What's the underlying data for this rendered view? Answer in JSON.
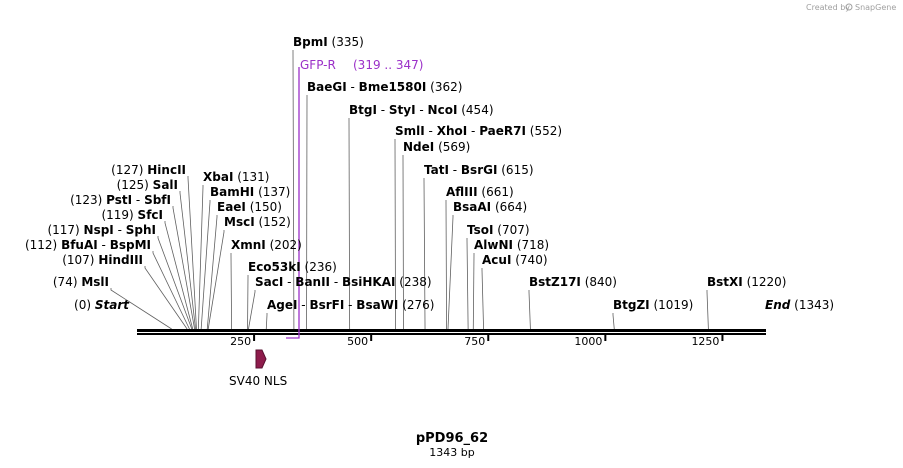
{
  "credit": {
    "text": "Created by",
    "brand": "SnapGene"
  },
  "plasmid": {
    "name": "pPD96_62",
    "length_label": "1343 bp"
  },
  "scale_ticks": [
    "250",
    "500",
    "750",
    "1000",
    "1250"
  ],
  "features": [
    {
      "name": "GFP-R",
      "range": "(319 .. 347)",
      "color": "#9b30c8"
    },
    {
      "name": "SV40 NLS",
      "color": "#8e1c4c"
    }
  ],
  "sites_left": [
    {
      "names": [
        "HincII"
      ],
      "pos": "(127)"
    },
    {
      "names": [
        "SalI"
      ],
      "pos": "(125)"
    },
    {
      "names": [
        "PstI",
        "SbfI"
      ],
      "pos": "(123)"
    },
    {
      "names": [
        "SfcI"
      ],
      "pos": "(119)"
    },
    {
      "names": [
        "NspI",
        "SphI"
      ],
      "pos": "(117)"
    },
    {
      "names": [
        "BfuAI",
        "BspMI"
      ],
      "pos": "(112)"
    },
    {
      "names": [
        "HindIII"
      ],
      "pos": "(107)"
    },
    {
      "names": [
        "MslI"
      ],
      "pos": "(74)"
    },
    {
      "names": [
        "Start"
      ],
      "pos": "(0)"
    }
  ],
  "sites_right": [
    {
      "names": [
        "BpmI"
      ],
      "pos": "(335)"
    },
    {
      "names": [
        "BaeGI",
        "Bme1580I"
      ],
      "pos": "(362)"
    },
    {
      "names": [
        "BtgI",
        "StyI",
        "NcoI"
      ],
      "pos": "(454)"
    },
    {
      "names": [
        "SmlI",
        "XhoI",
        "PaeR7I"
      ],
      "pos": "(552)"
    },
    {
      "names": [
        "NdeI"
      ],
      "pos": "(569)"
    },
    {
      "names": [
        "TatI",
        "BsrGI"
      ],
      "pos": "(615)"
    },
    {
      "names": [
        "XbaI"
      ],
      "pos": "(131)"
    },
    {
      "names": [
        "BamHI"
      ],
      "pos": "(137)"
    },
    {
      "names": [
        "EaeI"
      ],
      "pos": "(150)"
    },
    {
      "names": [
        "MscI"
      ],
      "pos": "(152)"
    },
    {
      "names": [
        "XmnI"
      ],
      "pos": "(202)"
    },
    {
      "names": [
        "Eco53kI"
      ],
      "pos": "(236)"
    },
    {
      "names": [
        "SacI",
        "BanII",
        "BsiHKAI"
      ],
      "pos": "(238)"
    },
    {
      "names": [
        "AgeI",
        "BsrFI",
        "BsaWI"
      ],
      "pos": "(276)"
    },
    {
      "names": [
        "AflIII"
      ],
      "pos": "(661)"
    },
    {
      "names": [
        "BsaAI"
      ],
      "pos": "(664)"
    },
    {
      "names": [
        "TsoI"
      ],
      "pos": "(707)"
    },
    {
      "names": [
        "AlwNI"
      ],
      "pos": "(718)"
    },
    {
      "names": [
        "AcuI"
      ],
      "pos": "(740)"
    },
    {
      "names": [
        "BstZ17I"
      ],
      "pos": "(840)"
    },
    {
      "names": [
        "BtgZI"
      ],
      "pos": "(1019)"
    },
    {
      "names": [
        "BstXI"
      ],
      "pos": "(1220)"
    },
    {
      "names": [
        "End"
      ],
      "pos": "(1343)"
    }
  ]
}
